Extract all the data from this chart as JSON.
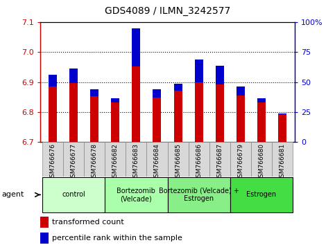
{
  "title": "GDS4089 / ILMN_3242577",
  "samples": [
    "GSM766676",
    "GSM766677",
    "GSM766678",
    "GSM766682",
    "GSM766683",
    "GSM766684",
    "GSM766685",
    "GSM766686",
    "GSM766687",
    "GSM766679",
    "GSM766680",
    "GSM766681"
  ],
  "red_values": [
    6.925,
    6.945,
    6.875,
    6.845,
    7.08,
    6.875,
    6.895,
    6.975,
    6.955,
    6.885,
    6.845,
    6.795
  ],
  "blue_values": [
    6.885,
    6.897,
    6.853,
    6.833,
    6.953,
    6.848,
    6.872,
    6.9,
    6.893,
    6.856,
    6.833,
    6.793
  ],
  "ymin": 6.7,
  "ymax": 7.1,
  "yticks_left": [
    6.7,
    6.8,
    6.9,
    7.0,
    7.1
  ],
  "yticks_right": [
    0,
    25,
    50,
    75,
    100
  ],
  "ylabel_left_color": "#cc0000",
  "ylabel_right_color": "#0000cc",
  "groups": [
    {
      "label": "control",
      "span": [
        0,
        3
      ],
      "color": "#ccffcc"
    },
    {
      "label": "Bortezomib\n(Velcade)",
      "span": [
        3,
        6
      ],
      "color": "#aaffaa"
    },
    {
      "label": "Bortezomib (Velcade) +\nEstrogen",
      "span": [
        6,
        9
      ],
      "color": "#88ee88"
    },
    {
      "label": "Estrogen",
      "span": [
        9,
        12
      ],
      "color": "#44dd44"
    }
  ],
  "bar_width": 0.4,
  "bar_bottom": 6.7,
  "red_color": "#cc0000",
  "blue_color": "#0000cc",
  "bg_color": "#ffffff",
  "agent_label": "agent",
  "legend_items": [
    "transformed count",
    "percentile rank within the sample"
  ],
  "xtick_bg": "#d8d8d8"
}
